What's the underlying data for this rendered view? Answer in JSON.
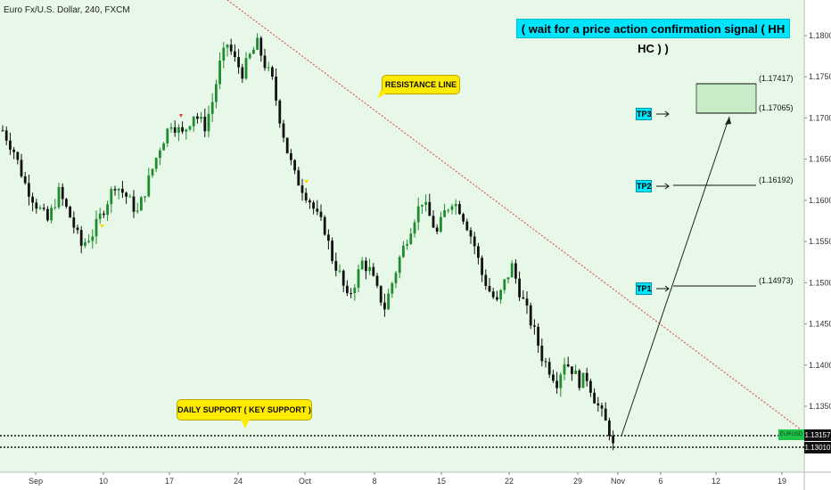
{
  "symbol_title": "Euro Fx/U.S. Dollar, 240, FXCM",
  "banner": "( wait for a price action confirmation signal ( HH HC ) )",
  "callouts": {
    "resistance": "RESISTANCE LINE",
    "support": "DAILY SUPPORT ( KEY SUPPORT )"
  },
  "targets": [
    {
      "name": "TP3",
      "level_label": "(1.17065)"
    },
    {
      "name": "TP2",
      "level_label": "(1.16192)"
    },
    {
      "name": "TP1",
      "level_label": "(1.14973)"
    }
  ],
  "zone_top_label": "(1.17417)",
  "price_tags": {
    "upper": "1.13157",
    "lower": "1.13010",
    "mini": "EURUSD"
  },
  "colors": {
    "background": "#e8f8e8",
    "up_candle": "#1e8c2f",
    "down_candle": "#111111",
    "resistance": "#e53935",
    "accent": "#00e5ff",
    "callout": "#ffeb00"
  },
  "chart_data": {
    "type": "candlestick",
    "title": "Euro Fx/U.S. Dollar, 240, FXCM",
    "x_ticks": [
      "Sep",
      "10",
      "17",
      "24",
      "Oct",
      "8",
      "15",
      "22",
      "29",
      "Nov",
      "6",
      "12",
      "19"
    ],
    "y_ticks": [
      "1.18000",
      "1.17500",
      "1.17000",
      "1.16500",
      "1.16000",
      "1.15500",
      "1.15000",
      "1.14500",
      "1.14000",
      "1.13500"
    ],
    "ylim": [
      1.1285,
      1.183
    ],
    "price_path": [
      [
        0,
        1.1685
      ],
      [
        3,
        1.166
      ],
      [
        6,
        1.162
      ],
      [
        9,
        1.1595
      ],
      [
        12,
        1.1575
      ],
      [
        15,
        1.161
      ],
      [
        18,
        1.158
      ],
      [
        21,
        1.1545
      ],
      [
        24,
        1.156
      ],
      [
        27,
        1.159
      ],
      [
        30,
        1.162
      ],
      [
        33,
        1.1605
      ],
      [
        36,
        1.1585
      ],
      [
        39,
        1.1625
      ],
      [
        42,
        1.1665
      ],
      [
        45,
        1.1695
      ],
      [
        48,
        1.168
      ],
      [
        51,
        1.1705
      ],
      [
        54,
        1.169
      ],
      [
        56,
        1.172
      ],
      [
        58,
        1.1765
      ],
      [
        60,
        1.179
      ],
      [
        62,
        1.177
      ],
      [
        64,
        1.1755
      ],
      [
        66,
        1.1775
      ],
      [
        68,
        1.179
      ],
      [
        70,
        1.1765
      ],
      [
        72,
        1.1745
      ],
      [
        74,
        1.17
      ],
      [
        76,
        1.166
      ],
      [
        78,
        1.163
      ],
      [
        80,
        1.1615
      ],
      [
        82,
        1.16
      ],
      [
        84,
        1.158
      ],
      [
        86,
        1.1565
      ],
      [
        88,
        1.153
      ],
      [
        90,
        1.151
      ],
      [
        92,
        1.148
      ],
      [
        94,
        1.15
      ],
      [
        96,
        1.1525
      ],
      [
        98,
        1.1515
      ],
      [
        100,
        1.149
      ],
      [
        102,
        1.147
      ],
      [
        104,
        1.15
      ],
      [
        106,
        1.153
      ],
      [
        108,
        1.1555
      ],
      [
        110,
        1.158
      ],
      [
        112,
        1.16
      ],
      [
        114,
        1.158
      ],
      [
        116,
        1.156
      ],
      [
        118,
        1.1585
      ],
      [
        120,
        1.16
      ],
      [
        122,
        1.159
      ],
      [
        124,
        1.157
      ],
      [
        126,
        1.1545
      ],
      [
        128,
        1.151
      ],
      [
        130,
        1.149
      ],
      [
        132,
        1.1475
      ],
      [
        134,
        1.15
      ],
      [
        136,
        1.152
      ],
      [
        138,
        1.149
      ],
      [
        140,
        1.1465
      ],
      [
        142,
        1.144
      ],
      [
        144,
        1.141
      ],
      [
        146,
        1.1395
      ],
      [
        148,
        1.138
      ],
      [
        150,
        1.1405
      ],
      [
        152,
        1.1395
      ],
      [
        154,
        1.138
      ],
      [
        156,
        1.1385
      ],
      [
        158,
        1.136
      ],
      [
        160,
        1.134
      ],
      [
        162,
        1.132
      ],
      [
        163,
        1.1301
      ]
    ],
    "resistance_line": {
      "from": [
        1.195,
        0
      ],
      "to": [
        1.1325,
        205
      ]
    },
    "support_levels": [
      1.13157,
      1.1301
    ],
    "projection": {
      "from": 1.1301,
      "to": 1.1705
    },
    "tp_zone": [
      1.17065,
      1.17417
    ]
  }
}
